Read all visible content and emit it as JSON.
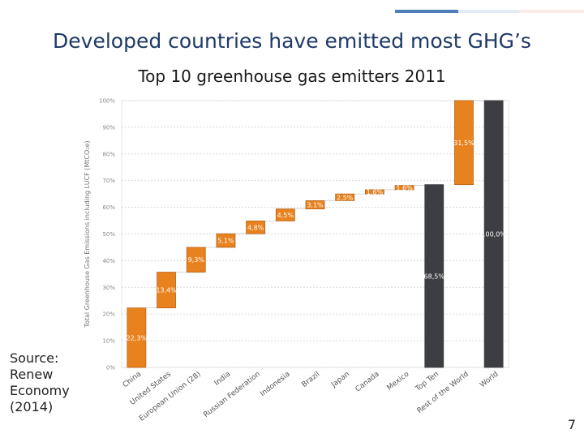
{
  "slide": {
    "title": "Developed countries have emitted most GHG’s",
    "source": "Source:\nRenew\nEconomy\n(2014)",
    "page_number": "7"
  },
  "colors": {
    "orange": "#e8821e",
    "orange_edge": "#b8631a",
    "dark": "#3d3e42",
    "grid": "#d9d9d9",
    "accent_blue": "#4f7fb8"
  },
  "chart_data": {
    "type": "bar",
    "subtype": "waterfall",
    "title": "Top 10 greenhouse gas emitters 2011",
    "ylabel": "Total Greenhouse Gas Emissions including LUCF (MtCO₂e)",
    "ylim": [
      0,
      100
    ],
    "yticks": [
      "0%",
      "10%",
      "20%",
      "30%",
      "40%",
      "50%",
      "60%",
      "70%",
      "80%",
      "90%",
      "100%"
    ],
    "grid": true,
    "categories": [
      "China",
      "United States",
      "European Union (28)",
      "India",
      "Russian Federation",
      "Indonesia",
      "Brazil",
      "Japan",
      "Canada",
      "Mexico",
      "Top Ten",
      "Rest of the World",
      "World"
    ],
    "bars": [
      {
        "category": "China",
        "start": 0,
        "end": 22.3,
        "label": "22,3%",
        "kind": "increment"
      },
      {
        "category": "United States",
        "start": 22.3,
        "end": 35.7,
        "label": "13,4%",
        "kind": "increment"
      },
      {
        "category": "European Union (28)",
        "start": 35.7,
        "end": 45.0,
        "label": "9,3%",
        "kind": "increment"
      },
      {
        "category": "India",
        "start": 45.0,
        "end": 50.1,
        "label": "5,1%",
        "kind": "increment"
      },
      {
        "category": "Russian Federation",
        "start": 50.1,
        "end": 54.9,
        "label": "4,8%",
        "kind": "increment"
      },
      {
        "category": "Indonesia",
        "start": 54.9,
        "end": 59.4,
        "label": "4,5%",
        "kind": "increment"
      },
      {
        "category": "Brazil",
        "start": 59.4,
        "end": 62.5,
        "label": "3,1%",
        "kind": "increment"
      },
      {
        "category": "Japan",
        "start": 62.5,
        "end": 65.0,
        "label": "2,5%",
        "kind": "increment"
      },
      {
        "category": "Canada",
        "start": 65.0,
        "end": 66.6,
        "label": "1,6%",
        "kind": "increment"
      },
      {
        "category": "Mexico",
        "start": 66.6,
        "end": 68.2,
        "label": "1,6%",
        "kind": "increment"
      },
      {
        "category": "Top Ten",
        "start": 0,
        "end": 68.5,
        "label": "68,5%",
        "kind": "total"
      },
      {
        "category": "Rest of the World",
        "start": 68.5,
        "end": 100,
        "label": "31,5%",
        "kind": "increment"
      },
      {
        "category": "World",
        "start": 0,
        "end": 100,
        "label": "100,0%",
        "kind": "total"
      }
    ]
  }
}
